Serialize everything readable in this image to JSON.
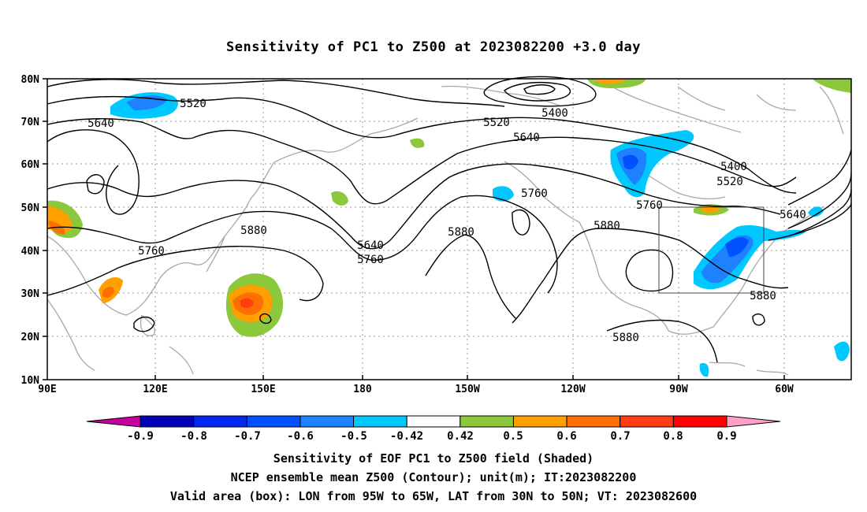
{
  "title": "Sensitivity of PC1 to Z500 at 2023082200 +3.0 day",
  "lat_labels": [
    "80N",
    "70N",
    "60N",
    "50N",
    "40N",
    "30N",
    "20N",
    "10N"
  ],
  "lon_labels": [
    "90E",
    "120E",
    "150E",
    "180",
    "150W",
    "120W",
    "90W",
    "60W"
  ],
  "contour_labels": [
    {
      "text": "5520",
      "ref": "c1"
    },
    {
      "text": "5640",
      "ref": "c2"
    },
    {
      "text": "5400",
      "ref": "c3"
    },
    {
      "text": "5520",
      "ref": "c4"
    },
    {
      "text": "5640",
      "ref": "c5"
    },
    {
      "text": "5400",
      "ref": "c6"
    },
    {
      "text": "5520",
      "ref": "c7"
    },
    {
      "text": "5760",
      "ref": "c8"
    },
    {
      "text": "5760",
      "ref": "c9"
    },
    {
      "text": "5640",
      "ref": "c10"
    },
    {
      "text": "5880",
      "ref": "c11"
    },
    {
      "text": "5760",
      "ref": "c12"
    },
    {
      "text": "5640",
      "ref": "c13"
    },
    {
      "text": "5760",
      "ref": "c14"
    },
    {
      "text": "5880",
      "ref": "c15"
    },
    {
      "text": "5880",
      "ref": "c16"
    },
    {
      "text": "5880",
      "ref": "c17"
    },
    {
      "text": "5880",
      "ref": "c18"
    }
  ],
  "colorbar": {
    "labels": [
      "-0.9",
      "-0.8",
      "-0.7",
      "-0.6",
      "-0.5",
      "-0.42",
      "0.42",
      "0.5",
      "0.6",
      "0.7",
      "0.8",
      "0.9"
    ],
    "colors": [
      "#0000b4",
      "#0028f0",
      "#0050ff",
      "#1e82ff",
      "#00c8ff",
      "#ffffff",
      "#8cc83c",
      "#ffa000",
      "#ff6e00",
      "#ff3c14",
      "#ff0000"
    ],
    "low_color": "#c8009b",
    "high_color": "#ffa0c8"
  },
  "captions": {
    "line1": "Sensitivity of EOF PC1 to Z500 field (Shaded)",
    "line2": "NCEP ensemble mean Z500 (Contour); unit(m); IT:2023082200",
    "line3": "Valid area (box): LON from 95W to 65W, LAT from 30N to 50N; VT: 2023082600"
  }
}
